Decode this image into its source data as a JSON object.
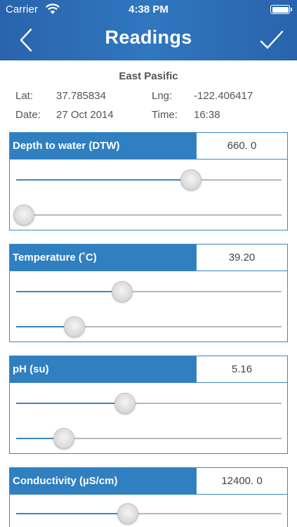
{
  "status": {
    "carrier": "Carrier",
    "time": "4:38 PM"
  },
  "nav": {
    "title": "Readings",
    "back_icon": "chevron-left-icon",
    "confirm_icon": "checkmark-icon"
  },
  "location": {
    "name": "East Pasific",
    "lat_label": "Lat:",
    "lat_value": "37.785834",
    "lng_label": "Lng:",
    "lng_value": "-122.406417",
    "date_label": "Date:",
    "date_value": "27 Oct 2014",
    "time_label": "Time:",
    "time_value": "16:38"
  },
  "colors": {
    "header": "#2f77bf",
    "accent": "#3a87c6",
    "panel_label": "#2f7fc1"
  },
  "readings": [
    {
      "label": "Depth to water (DTW)",
      "value": "660. 0",
      "slider1": 0.66,
      "slider2": 0.03
    },
    {
      "label": "Temperature (˚C)",
      "value": "39.20",
      "slider1": 0.4,
      "slider2": 0.22
    },
    {
      "label": "pH (su)",
      "value": "5.16",
      "slider1": 0.41,
      "slider2": 0.18
    },
    {
      "label": "Conductivity (µS/cm)",
      "value": "12400. 0",
      "slider1": 0.42,
      "slider2": null
    }
  ]
}
